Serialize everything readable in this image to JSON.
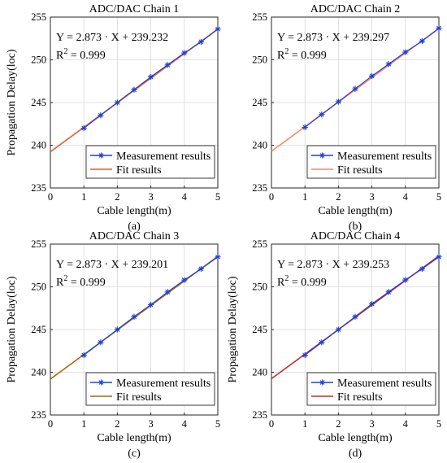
{
  "chart_data": [
    {
      "type": "line",
      "title": "ADC/DAC Chain 1",
      "xlabel": "Cable length(m)",
      "ylabel": "Propagation Delay(loc)",
      "caption": "(a)",
      "xlim": [
        0,
        5
      ],
      "ylim": [
        235,
        255
      ],
      "xticks": [
        "0",
        "1",
        "2",
        "3",
        "4",
        "5"
      ],
      "yticks": [
        "235",
        "240",
        "245",
        "250",
        "255"
      ],
      "grid": true,
      "legend_position": "bottom-right",
      "equation": "Y = 2.873 · X + 239.232",
      "r2_text": "= 0.999",
      "series": [
        {
          "name": "Measurement results",
          "color": "#1f3fd6",
          "marker": "asterisk",
          "x": [
            1,
            1.5,
            2,
            2.5,
            3,
            3.5,
            4,
            4.5,
            5
          ],
          "y": [
            242.0,
            243.5,
            245.0,
            246.5,
            248.0,
            249.4,
            250.8,
            252.1,
            253.6
          ]
        },
        {
          "name": "Fit results",
          "color": "#e2622e",
          "slope": 2.873,
          "intercept": 239.232
        }
      ]
    },
    {
      "type": "line",
      "title": "ADC/DAC Chain 2",
      "xlabel": "Cable length(m)",
      "ylabel": "",
      "caption": "(b)",
      "xlim": [
        0,
        5
      ],
      "ylim": [
        235,
        255
      ],
      "xticks": [
        "0",
        "1",
        "2",
        "3",
        "4",
        "5"
      ],
      "yticks": [
        "235",
        "240",
        "245",
        "250",
        "255"
      ],
      "grid": true,
      "legend_position": "bottom-right",
      "equation": "Y = 2.873 · X + 239.297",
      "r2_text": "= 0.999",
      "series": [
        {
          "name": "Measurement results",
          "color": "#1f3fd6",
          "marker": "asterisk",
          "x": [
            1,
            1.5,
            2,
            2.5,
            3,
            3.5,
            4,
            4.5,
            5
          ],
          "y": [
            242.1,
            243.6,
            245.1,
            246.6,
            248.1,
            249.5,
            250.9,
            252.2,
            253.7
          ]
        },
        {
          "name": "Fit results",
          "color": "#f08a6c",
          "slope": 2.873,
          "intercept": 239.297
        }
      ]
    },
    {
      "type": "line",
      "title": "ADC/DAC Chain 3",
      "xlabel": "Cable length(m)",
      "ylabel": "Propagation Delay(loc)",
      "caption": "(c)",
      "xlim": [
        0,
        5
      ],
      "ylim": [
        235,
        255
      ],
      "xticks": [
        "0",
        "1",
        "2",
        "3",
        "4",
        "5"
      ],
      "yticks": [
        "235",
        "240",
        "245",
        "250",
        "255"
      ],
      "grid": true,
      "legend_position": "bottom-right",
      "equation": "Y = 2.873 · X + 239.201",
      "r2_text": "= 0.999",
      "series": [
        {
          "name": "Measurement results",
          "color": "#1f3fd6",
          "marker": "asterisk",
          "x": [
            1,
            1.5,
            2,
            2.5,
            3,
            3.5,
            4,
            4.5,
            5
          ],
          "y": [
            242.0,
            243.5,
            245.0,
            246.5,
            247.9,
            249.4,
            250.8,
            252.1,
            253.5
          ]
        },
        {
          "name": "Fit results",
          "color": "#9a6a12",
          "slope": 2.873,
          "intercept": 239.201
        }
      ]
    },
    {
      "type": "line",
      "title": "ADC/DAC Chain 4",
      "xlabel": "Cable length(m)",
      "ylabel": "Propagation Delay(loc)",
      "caption": "(d)",
      "xlim": [
        0,
        5
      ],
      "ylim": [
        235,
        255
      ],
      "xticks": [
        "0",
        "1",
        "2",
        "3",
        "4",
        "5"
      ],
      "yticks": [
        "235",
        "240",
        "245",
        "250",
        "255"
      ],
      "grid": true,
      "legend_position": "bottom-right",
      "equation": "Y = 2.873 · X + 239.253",
      "r2_text": "= 0.999",
      "series": [
        {
          "name": "Measurement results",
          "color": "#1f3fd6",
          "marker": "asterisk",
          "x": [
            1,
            1.5,
            2,
            2.5,
            3,
            3.5,
            4,
            4.5,
            5
          ],
          "y": [
            242.0,
            243.5,
            245.0,
            246.5,
            248.0,
            249.4,
            250.8,
            252.1,
            253.5
          ]
        },
        {
          "name": "Fit results",
          "color": "#b8332b",
          "slope": 2.873,
          "intercept": 239.253
        }
      ]
    }
  ]
}
